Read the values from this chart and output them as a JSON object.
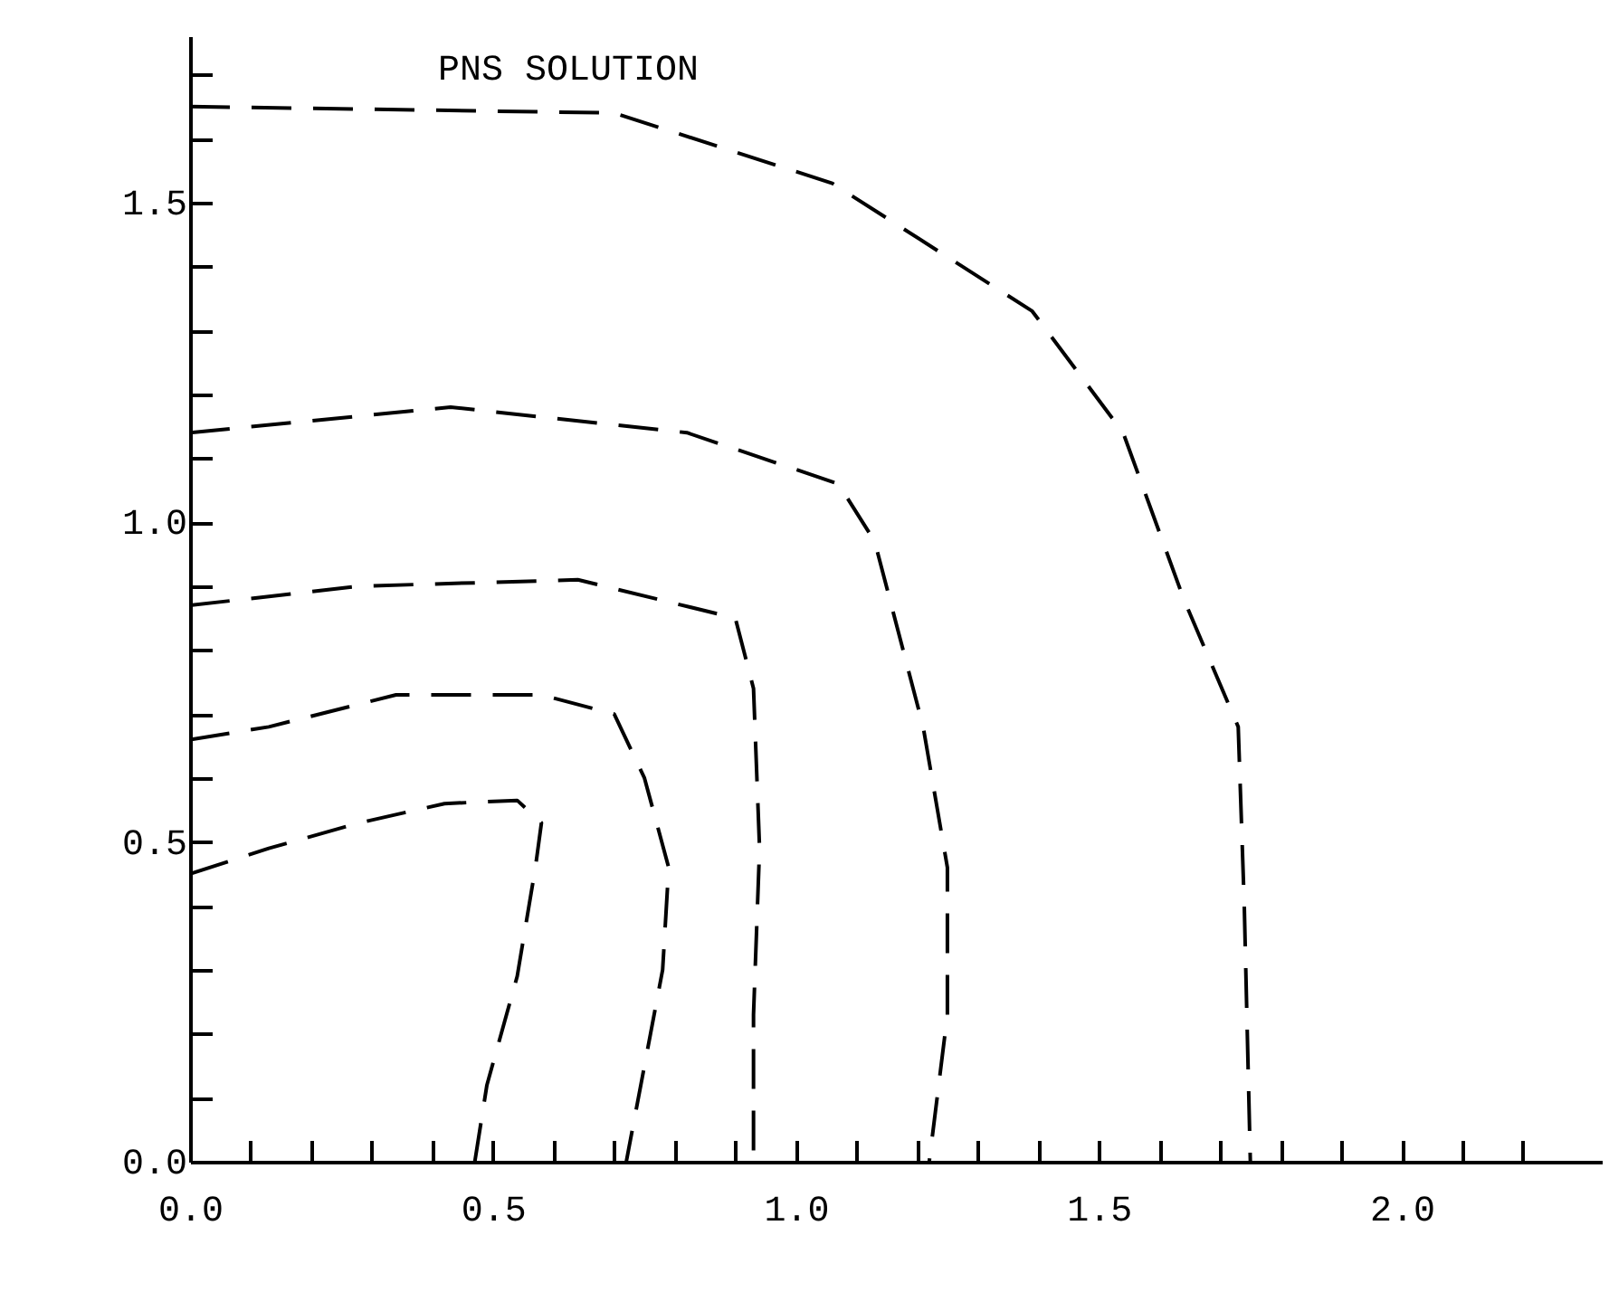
{
  "chart_data": {
    "type": "line",
    "title": "PNS SOLUTION",
    "xlim": [
      0,
      2.33
    ],
    "ylim": [
      0,
      1.76
    ],
    "xticks": [
      {
        "value": 0,
        "label": "0.0"
      },
      {
        "value": 0.1,
        "label": null
      },
      {
        "value": 0.2,
        "label": null
      },
      {
        "value": 0.3,
        "label": null
      },
      {
        "value": 0.4,
        "label": null
      },
      0.5,
      {
        "value": 0.6,
        "label": null
      },
      {
        "value": 0.7,
        "label": null
      },
      {
        "value": 0.8,
        "label": null
      },
      {
        "value": 0.9,
        "label": null
      },
      {
        "value": 1,
        "label": "1.0"
      },
      {
        "value": 1.1,
        "label": null
      },
      {
        "value": 1.2,
        "label": null
      },
      {
        "value": 1.3,
        "label": null
      },
      {
        "value": 1.4,
        "label": null
      },
      1.5,
      {
        "value": 1.6,
        "label": null
      },
      {
        "value": 1.7,
        "label": null
      },
      {
        "value": 1.8,
        "label": null
      },
      {
        "value": 1.9,
        "label": null
      },
      {
        "value": 2,
        "label": "2.0"
      },
      {
        "value": 2.1,
        "label": null
      },
      {
        "value": 2.2,
        "label": null
      }
    ],
    "yticks": [
      {
        "value": 0,
        "label": "0.0"
      },
      {
        "value": 0.1,
        "label": null
      },
      {
        "value": 0.2,
        "label": null
      },
      {
        "value": 0.3,
        "label": null
      },
      {
        "value": 0.4,
        "label": null
      },
      0.5,
      {
        "value": 0.6,
        "label": null
      },
      {
        "value": 0.7,
        "label": null
      },
      {
        "value": 0.8,
        "label": null
      },
      {
        "value": 0.9,
        "label": null
      },
      {
        "value": 1,
        "label": "1.0"
      },
      {
        "value": 1.1,
        "label": null
      },
      {
        "value": 1.2,
        "label": null
      },
      {
        "value": 1.3,
        "label": null
      },
      {
        "value": 1.4,
        "label": null
      },
      1.5,
      {
        "value": 1.6,
        "label": null
      },
      {
        "value": 1.7,
        "label": null
      }
    ],
    "line_style": "dashed",
    "grid": false,
    "series": [
      {
        "color": "#000000",
        "x": [
          0,
          0.13,
          0.28,
          0.42,
          0.54,
          0.58,
          0.57,
          0.54,
          0.49,
          0.47
        ],
        "values": [
          0.45,
          0.49,
          0.53,
          0.56,
          0.565,
          0.53,
          0.46,
          0.29,
          0.12,
          0
        ]
      },
      {
        "color": "#000000",
        "x": [
          0,
          0.13,
          0.34,
          0.58,
          0.7,
          0.75,
          0.79,
          0.78,
          0.76,
          0.72
        ],
        "values": [
          0.66,
          0.68,
          0.73,
          0.73,
          0.7,
          0.6,
          0.46,
          0.3,
          0.2,
          0
        ]
      },
      {
        "color": "#000000",
        "x": [
          0,
          0.28,
          0.64,
          0.9,
          0.93,
          0.94,
          0.93,
          0.93
        ],
        "values": [
          0.87,
          0.9,
          0.91,
          0.85,
          0.74,
          0.49,
          0.23,
          0
        ]
      },
      {
        "color": "#000000",
        "x": [
          0,
          0.43,
          0.82,
          1.07,
          1.13,
          1.21,
          1.25,
          1.25,
          1.22
        ],
        "values": [
          1.14,
          1.18,
          1.14,
          1.06,
          0.97,
          0.68,
          0.46,
          0.23,
          0
        ]
      },
      {
        "color": "#000000",
        "x": [
          0,
          0.7,
          1.06,
          1.39,
          1.54,
          1.64,
          1.73,
          1.74,
          1.75
        ],
        "values": [
          1.65,
          1.64,
          1.53,
          1.33,
          1.14,
          0.88,
          0.68,
          0.4,
          0
        ]
      }
    ]
  }
}
